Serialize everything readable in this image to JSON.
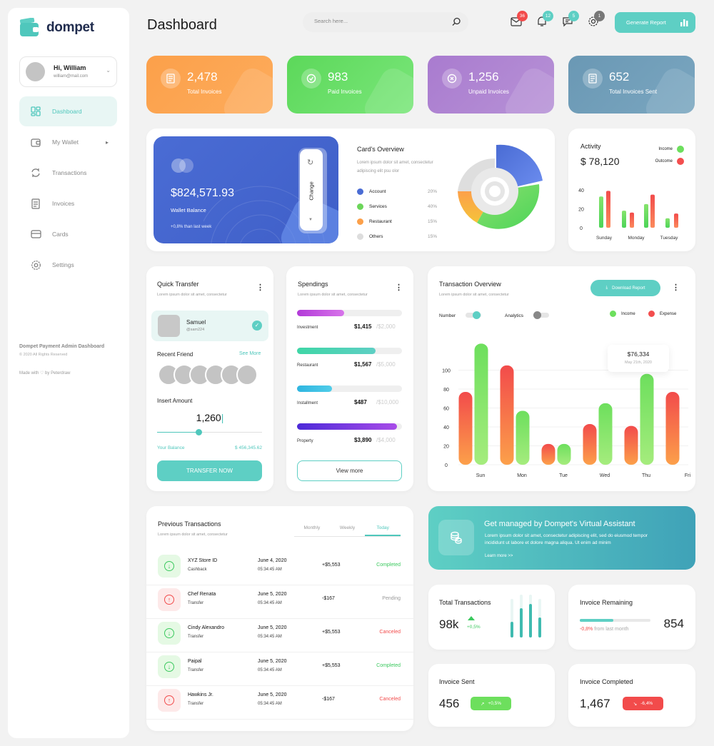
{
  "app": {
    "name": "dompet"
  },
  "sidebar": {
    "user": {
      "greeting": "Hi, William",
      "email": "william@mail.com"
    },
    "items": [
      {
        "label": "Dashboard",
        "icon": "dashboard-icon",
        "active": true
      },
      {
        "label": "My Wallet",
        "icon": "wallet-icon",
        "active": false
      },
      {
        "label": "Transactions",
        "icon": "transactions-icon",
        "active": false
      },
      {
        "label": "Invoices",
        "icon": "invoices-icon",
        "active": false
      },
      {
        "label": "Cards",
        "icon": "cards-icon",
        "active": false
      },
      {
        "label": "Settings",
        "icon": "settings-icon",
        "active": false
      }
    ],
    "footer": {
      "title": "Dompet Payment Admin Dashboard",
      "copyright": "© 2020 All Rights Reserved",
      "made_with": "Made with ♡ by Peterdraw"
    }
  },
  "header": {
    "title": "Dashboard",
    "search_placeholder": "Search here...",
    "badges": {
      "mail": "36",
      "bell": "12",
      "chat": "5",
      "settings": "1"
    },
    "generate_label": "Generate Report"
  },
  "stats": [
    {
      "value": "2,478",
      "label": "Total Invoices",
      "color": "#fca04a"
    },
    {
      "value": "983",
      "label": "Paid Invoices",
      "color": "#68dc65"
    },
    {
      "value": "1,256",
      "label": "Unpaid Invoices",
      "color": "#ac80d0"
    },
    {
      "value": "652",
      "label": "Total Invoices Sent",
      "color": "#6c9ab5"
    }
  ],
  "wallet": {
    "balance": "$824,571.93",
    "label": "Wallet Balance",
    "change": "+0,8% than last week",
    "change_button": "Change"
  },
  "cards_overview": {
    "title": "Card's Overview",
    "desc": "Lorem ipsum dolor sit amet, consectetur adipiscing elit psu olor",
    "items": [
      {
        "label": "Account",
        "pct": "20%",
        "color": "#4a6cd4"
      },
      {
        "label": "Services",
        "pct": "40%",
        "color": "#6cd65a"
      },
      {
        "label": "Restaurant",
        "pct": "15%",
        "color": "#fca04a"
      },
      {
        "label": "Others",
        "pct": "15%",
        "color": "#dddddd"
      }
    ]
  },
  "activity": {
    "title": "Activity",
    "amount": "$ 78,120",
    "legend": [
      "Income",
      "Outcome"
    ],
    "yticks": [
      "40",
      "20",
      "0"
    ],
    "days": [
      "Sunday",
      "Monday",
      "Tuesday"
    ]
  },
  "quick_transfer": {
    "title": "Quick Transfer",
    "sub": "Lorem ipsum dolor sit amet, consectetur",
    "contact_name": "Samuel",
    "contact_handle": "@sam224",
    "recent_label": "Recent Friend",
    "see_more": "See More",
    "amount_label": "Insert Amount",
    "amount": "1,260",
    "slider_level": 0.4,
    "balance_label": "Your Balance",
    "balance": "$ 456,345.62",
    "button": "TRANSFER NOW"
  },
  "spendings": {
    "title": "Spendings",
    "sub": "Lorem ipsum dolor sit amet, consectetur",
    "items": [
      {
        "label": "Investment",
        "amount": "$1,415",
        "limit": "/$2,000",
        "fill": 0.45
      },
      {
        "label": "Restaurant",
        "amount": "$1,567",
        "limit": "/$5,000",
        "fill": 0.75
      },
      {
        "label": "Installment",
        "amount": "$487",
        "limit": "/$10,000",
        "fill": 0.33
      },
      {
        "label": "Property",
        "amount": "$3,890",
        "limit": "/$4,000",
        "fill": 0.95
      }
    ],
    "view_more": "View more"
  },
  "transaction_overview": {
    "title": "Transaction Overview",
    "sub": "Lorem ipsum dolor sit amet, consectetur",
    "download_label": "Download Report",
    "toggles": [
      "Number",
      "Analytics"
    ],
    "legend": [
      "Income",
      "Expense"
    ],
    "tooltip_value": "$76,334",
    "tooltip_date": "May 21th, 2020",
    "yticks": [
      "100",
      "80",
      "60",
      "40",
      "20",
      "0"
    ],
    "days": [
      "Sun",
      "Mon",
      "Tue",
      "Wed",
      "Thu",
      "Fri"
    ]
  },
  "chart_data": {
    "type": "bar",
    "categories": [
      "Sun",
      "Mon",
      "Tue",
      "Wed",
      "Thu",
      "Fri"
    ],
    "series": [
      {
        "name": "Expense",
        "values": [
          77,
          105,
          22,
          43,
          41,
          77
        ]
      },
      {
        "name": "Income",
        "values": [
          128,
          57,
          22,
          65,
          96,
          null
        ]
      }
    ],
    "ylim": [
      0,
      130
    ],
    "yticks": [
      0,
      20,
      40,
      60,
      80,
      100
    ]
  },
  "activity_data": {
    "income": [
      33,
      18,
      25,
      10
    ],
    "outcome": [
      39,
      16,
      35,
      15
    ]
  },
  "previous_transactions": {
    "title": "Previous Transactions",
    "sub": "Lorem ipsum dolor sit amet, consectetur",
    "tabs": [
      "Monthly",
      "Weekly",
      "Today"
    ],
    "rows": [
      {
        "name": "XYZ Store ID",
        "type": "Cashback",
        "date": "June 4, 2020",
        "time": "05:34:45 AM",
        "amount": "+$5,553",
        "status": "Completed",
        "dir": "in"
      },
      {
        "name": "Chef Renata",
        "type": "Transfer",
        "date": "June 5, 2020",
        "time": "05:34:45 AM",
        "amount": "-$167",
        "status": "Pending",
        "dir": "out"
      },
      {
        "name": "Cindy Alexandro",
        "type": "Transfer",
        "date": "June 5, 2020",
        "time": "05:34:45 AM",
        "amount": "+$5,553",
        "status": "Canceled",
        "dir": "in"
      },
      {
        "name": "Paipal",
        "type": "Transfer",
        "date": "June 5, 2020",
        "time": "05:34:45 AM",
        "amount": "+$5,553",
        "status": "Completed",
        "dir": "in"
      },
      {
        "name": "Hawkins Jr.",
        "type": "Transfer",
        "date": "June 5, 2020",
        "time": "05:34:45 AM",
        "amount": "-$167",
        "status": "Canceled",
        "dir": "out"
      }
    ]
  },
  "assistant": {
    "title": "Get managed by Dompet's Virtual Assistant",
    "desc": "Lorem ipsum dolor sit amet, consectetur adipiscing elit, sed do eiusmod tempor incididunt ut labore et dolore magna aliqua. Ut enim ad minim",
    "link": "Learn more >>"
  },
  "mini": {
    "total_transactions": {
      "title": "Total Transactions",
      "value": "98k",
      "change": "+0,5%"
    },
    "invoice_remaining": {
      "title": "Invoice Remaining",
      "value": "854",
      "change": "-0,8%",
      "change_suffix": "from last month",
      "level": 0.47
    },
    "invoice_sent": {
      "title": "Invoice Sent",
      "value": "456",
      "change": "+0,5%"
    },
    "invoice_completed": {
      "title": "Invoice Completed",
      "value": "1,467",
      "change": "-6,4%"
    }
  }
}
